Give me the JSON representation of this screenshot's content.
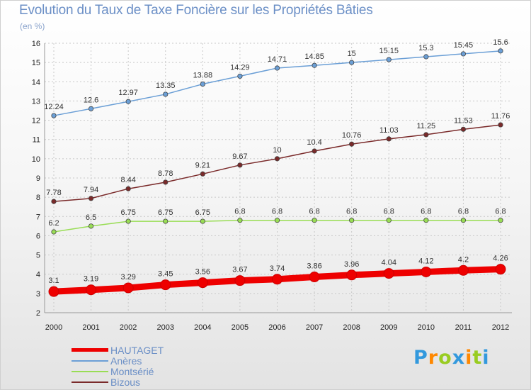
{
  "chart_data": {
    "type": "line",
    "title": "Evolution du Taux de Taxe Foncière sur les Propriétés Bâties",
    "subtitle": "(en %)",
    "xlabel": "",
    "ylabel": "",
    "ylim": [
      2,
      16
    ],
    "yticks": [
      2,
      3,
      4,
      5,
      6,
      7,
      8,
      9,
      10,
      11,
      12,
      13,
      14,
      15,
      16
    ],
    "x": [
      2000,
      2001,
      2002,
      2003,
      2004,
      2005,
      2006,
      2007,
      2008,
      2009,
      2010,
      2011,
      2012
    ],
    "grid": true,
    "legend_position": "bottom-left",
    "series": [
      {
        "name": "HAUTAGET",
        "color": "#ee0000",
        "values": [
          3.1,
          3.19,
          3.29,
          3.45,
          3.56,
          3.67,
          3.74,
          3.86,
          3.96,
          4.04,
          4.12,
          4.2,
          4.26
        ],
        "labels": [
          "3.1",
          "3.19",
          "3.29",
          "3.45",
          "3.56",
          "3.67",
          "3.74",
          "3.86",
          "3.96",
          "4.04",
          "4.12",
          "4.2",
          "4.26"
        ]
      },
      {
        "name": "Anères",
        "color": "#6b9fd6",
        "values": [
          12.24,
          12.6,
          12.97,
          13.35,
          13.88,
          14.29,
          14.71,
          14.85,
          15,
          15.15,
          15.3,
          15.45,
          15.6
        ],
        "labels": [
          "12.24",
          "12.6",
          "12.97",
          "13.35",
          "13.88",
          "14.29",
          "14.71",
          "14.85",
          "15",
          "15.15",
          "15.3",
          "15.45",
          "15.6"
        ]
      },
      {
        "name": "Montsérié",
        "color": "#99dd55",
        "values": [
          6.2,
          6.5,
          6.75,
          6.75,
          6.75,
          6.8,
          6.8,
          6.8,
          6.8,
          6.8,
          6.8,
          6.8,
          6.8
        ],
        "labels": [
          "6.2",
          "6.5",
          "6.75",
          "6.75",
          "6.75",
          "6.8",
          "6.8",
          "6.8",
          "6.8",
          "6.8",
          "6.8",
          "6.8",
          "6.8"
        ]
      },
      {
        "name": "Bizous",
        "color": "#7a2a2a",
        "values": [
          7.78,
          7.94,
          8.44,
          8.78,
          9.21,
          9.67,
          10,
          10.4,
          10.76,
          11.03,
          11.25,
          11.53,
          11.76
        ],
        "labels": [
          "7.78",
          "7.94",
          "8.44",
          "8.78",
          "9.21",
          "9.67",
          "10",
          "10.4",
          "10.76",
          "11.03",
          "11.25",
          "11.53",
          "11.76"
        ]
      }
    ]
  },
  "legend": {
    "items": [
      {
        "label": "HAUTAGET",
        "color": "#ee0000"
      },
      {
        "label": "Anères",
        "color": "#6b9fd6"
      },
      {
        "label": "Montsérié",
        "color": "#99dd55"
      },
      {
        "label": "Bizous",
        "color": "#7a2a2a"
      }
    ]
  },
  "logo": {
    "text": "Proxiti",
    "letters": [
      "P",
      "r",
      "o",
      "x",
      "i",
      "t",
      "i"
    ],
    "letter_colors": [
      "#3399dd",
      "#ff8800",
      "#99cc22",
      "#3399dd",
      "#ff8800",
      "#99cc22",
      "#3399dd"
    ]
  }
}
